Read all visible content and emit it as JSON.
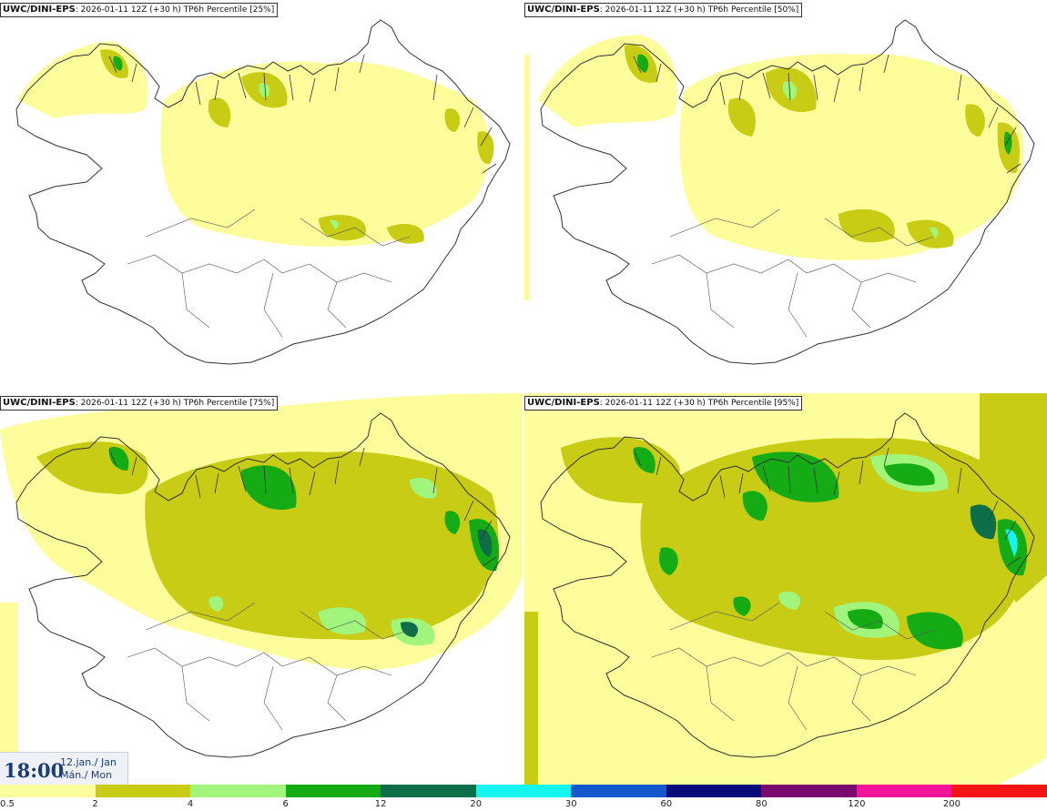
{
  "panels": [
    {
      "model": "UWC/DINI-EPS",
      "info": ": 2026-01-11 12Z (+30 h) TP6h Percentile [25%]",
      "percentile": 25
    },
    {
      "model": "UWC/DINI-EPS",
      "info": ": 2026-01-11 12Z (+30 h) TP6h Percentile [50%]",
      "percentile": 50
    },
    {
      "model": "UWC/DINI-EPS",
      "info": ": 2026-01-11 12Z (+30 h) TP6h Percentile [75%]",
      "percentile": 75
    },
    {
      "model": "UWC/DINI-EPS",
      "info": ": 2026-01-11 12Z (+30 h) TP6h Percentile [95%]",
      "percentile": 95
    }
  ],
  "valid_time": {
    "time": "18:00",
    "date_line1": "12.jan./ Jan",
    "date_line2": "Mán./ Mon"
  },
  "legend": {
    "ticks": [
      "0.5",
      "2",
      "4",
      "6",
      "12",
      "20",
      "30",
      "60",
      "80",
      "120",
      "200"
    ],
    "colors": [
      "#fdfd9c",
      "#c8cc14",
      "#a2f57c",
      "#14ab14",
      "#0e6e48",
      "#14f4f0",
      "#1458cc",
      "#0a0a7a",
      "#7a0a70",
      "#f4149a",
      "#f41414"
    ]
  },
  "map_colors": {
    "coast": "#333333",
    "land": "#ffffff",
    "level1": "#fdfd9c",
    "level2": "#c8cc14",
    "level3": "#a2f57c",
    "level4": "#14ab14",
    "level5": "#0e6e48",
    "level6": "#14f4f0"
  }
}
